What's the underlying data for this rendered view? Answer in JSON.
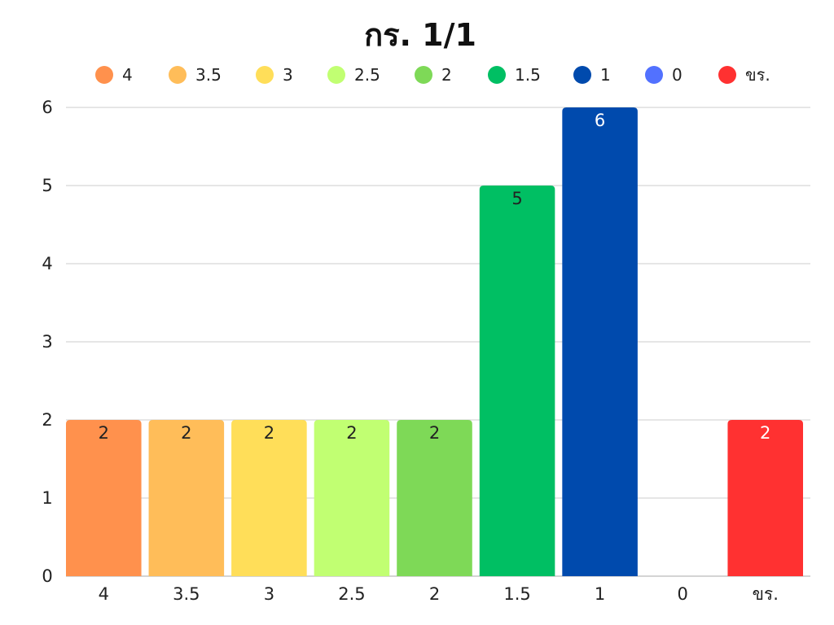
{
  "chart_data": {
    "type": "bar",
    "title": "กร. 1/1",
    "xlabel": "",
    "ylabel": "",
    "categories": [
      "4",
      "3.5",
      "3",
      "2.5",
      "2",
      "1.5",
      "1",
      "0",
      "ขร."
    ],
    "values": [
      2,
      2,
      2,
      2,
      2,
      5,
      6,
      0,
      2
    ],
    "colors": [
      "#ff914d",
      "#ffbd59",
      "#ffde59",
      "#c1ff72",
      "#7ed957",
      "#00bf63",
      "#004aad",
      "#5271ff",
      "#ff3131"
    ],
    "label_colors": [
      "#222222",
      "#222222",
      "#222222",
      "#222222",
      "#222222",
      "#222222",
      "#ffffff",
      "#ffffff",
      "#ffffff"
    ],
    "ylim": [
      0,
      6
    ],
    "yticks": [
      0,
      1,
      2,
      3,
      4,
      5,
      6
    ],
    "grid": true,
    "legend": {
      "position": "top",
      "entries": [
        "4",
        "3.5",
        "3",
        "2.5",
        "2",
        "1.5",
        "1",
        "0",
        "ขร."
      ]
    }
  }
}
